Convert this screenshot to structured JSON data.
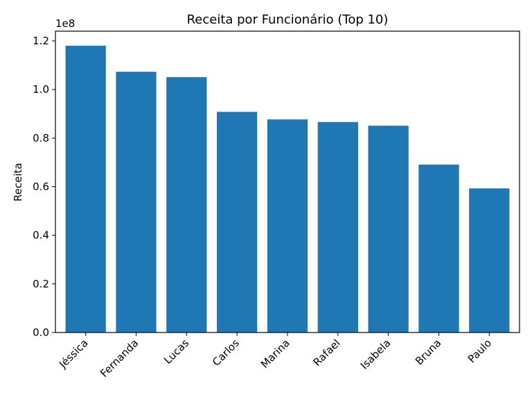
{
  "chart_data": {
    "type": "bar",
    "title": "Receita por Funcionário (Top 10)",
    "xlabel": "",
    "ylabel": "Receita",
    "y_offset_label": "1e8",
    "y_scale": 100000000,
    "ylim": [
      0,
      124000000
    ],
    "yticks": [
      0,
      20000000,
      40000000,
      60000000,
      80000000,
      100000000,
      120000000
    ],
    "ytick_labels": [
      "0.0",
      "0.2",
      "0.4",
      "0.6",
      "0.8",
      "1.0",
      "1.2"
    ],
    "categories": [
      "Jéssica",
      "Fernanda",
      "Lucas",
      "Carlos",
      "Marina",
      "Rafael",
      "Isabela",
      "Bruna",
      "Paulo"
    ],
    "values": [
      118000000,
      107300000,
      105100000,
      90800000,
      87700000,
      86600000,
      85100000,
      69100000,
      59300000
    ],
    "bar_color": "#1f77b4",
    "grid": false,
    "legend": "none",
    "xtick_rotation": 45
  }
}
